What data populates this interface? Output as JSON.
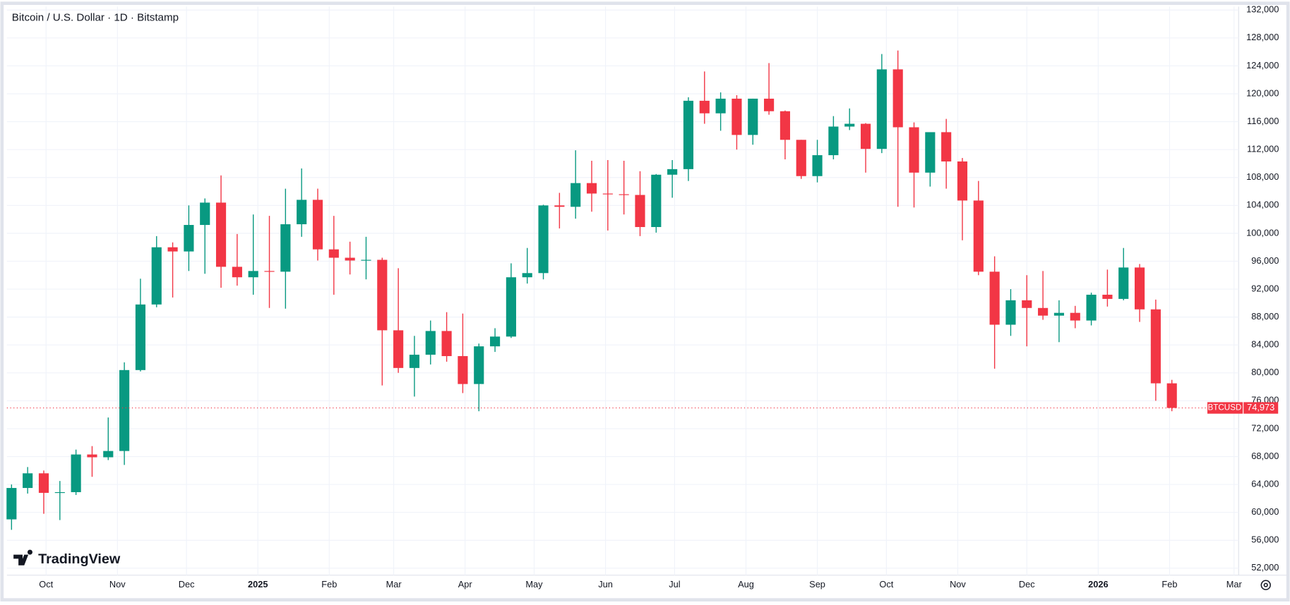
{
  "chart_data": {
    "type": "candlestick",
    "title": "Bitcoin / U.S. Dollar · 1D · Bitstamp",
    "brand": "TradingView",
    "up_color": "#089981",
    "down_color": "#f23645",
    "grid": true,
    "x": [
      0,
      7,
      14,
      21,
      28,
      35,
      42,
      49,
      56,
      63,
      70,
      77,
      84,
      91,
      98,
      105,
      112,
      119,
      126,
      133,
      140,
      147,
      154,
      161,
      168,
      175,
      182,
      189,
      196,
      203,
      210,
      217,
      224,
      231,
      238,
      245,
      252,
      259,
      266,
      273,
      280,
      287,
      294,
      301,
      308,
      315,
      322,
      329,
      336,
      343,
      350,
      357,
      364,
      371,
      378,
      385,
      392,
      399,
      406,
      413,
      420,
      427,
      434,
      441,
      448,
      455,
      462,
      469,
      476,
      483,
      490,
      497,
      504
    ],
    "open": [
      59000,
      63500,
      65600,
      62800,
      62900,
      68300,
      67900,
      68800,
      80400,
      89800,
      98000,
      97400,
      101200,
      104400,
      95200,
      93700,
      94600,
      94500,
      101300,
      104800,
      97700,
      96500,
      96100,
      96200,
      86100,
      80700,
      82600,
      86000,
      82400,
      78400,
      83800,
      85200,
      93700,
      94300,
      104000,
      103800,
      107200,
      105700,
      105600,
      105500,
      100900,
      108400,
      109200,
      119000,
      117200,
      119300,
      114100,
      119300,
      117500,
      113400,
      108200,
      111200,
      115300,
      115700,
      112100,
      123500,
      115200,
      108700,
      114500,
      110300,
      104700,
      94500,
      86900,
      90400,
      89300,
      88200,
      88600,
      87500,
      91200,
      90600,
      95100,
      89100,
      78500
    ],
    "high": [
      64000,
      66500,
      66000,
      64500,
      69000,
      69500,
      73600,
      81500,
      93500,
      99600,
      98700,
      104000,
      105000,
      108300,
      99900,
      102700,
      102500,
      106400,
      109300,
      106400,
      102500,
      98800,
      99500,
      96500,
      95000,
      85300,
      87500,
      88700,
      88500,
      84200,
      86400,
      95700,
      97900,
      104100,
      105800,
      111900,
      110400,
      110500,
      110400,
      108900,
      108500,
      110500,
      119500,
      123200,
      120200,
      119800,
      119300,
      124400,
      117600,
      113400,
      113400,
      116800,
      117900,
      115800,
      125700,
      126200,
      115900,
      114200,
      116400,
      110800,
      107500,
      96700,
      92000,
      94000,
      94600,
      90400,
      89600,
      91500,
      94800,
      97900,
      95600,
      90500,
      79000
    ],
    "low": [
      57500,
      62700,
      59800,
      58900,
      62500,
      65100,
      67500,
      66800,
      80200,
      89400,
      90800,
      94600,
      94200,
      92200,
      92500,
      91200,
      89300,
      89200,
      99500,
      96100,
      91200,
      94100,
      93400,
      78200,
      80000,
      76600,
      81200,
      81600,
      77100,
      74500,
      83000,
      85000,
      92800,
      93400,
      100700,
      102100,
      103100,
      100400,
      102700,
      99600,
      100100,
      105100,
      107500,
      115700,
      114700,
      112000,
      112700,
      117000,
      110600,
      107800,
      107300,
      110600,
      114800,
      108700,
      111500,
      103800,
      103700,
      106700,
      106400,
      99000,
      94000,
      80600,
      85300,
      83800,
      87600,
      84400,
      86400,
      86800,
      89500,
      90400,
      87300,
      76000,
      74500
    ],
    "close": [
      63500,
      65600,
      62800,
      62900,
      68300,
      67900,
      68800,
      80400,
      89800,
      98000,
      97400,
      101200,
      104400,
      95200,
      93700,
      94600,
      94500,
      101300,
      104800,
      97700,
      96500,
      96100,
      96200,
      86100,
      80700,
      82600,
      86000,
      82400,
      78400,
      83800,
      85200,
      93700,
      94300,
      104000,
      103800,
      107200,
      105700,
      105600,
      105500,
      100900,
      108400,
      109200,
      119000,
      117200,
      119300,
      114100,
      119300,
      117500,
      113400,
      108200,
      111200,
      115300,
      115700,
      112100,
      123500,
      115200,
      108700,
      114500,
      110300,
      104700,
      94500,
      86900,
      90400,
      89300,
      88200,
      88600,
      87500,
      91200,
      90600,
      95100,
      89100,
      78500,
      74973
    ],
    "last_price": {
      "symbol": "BTCUSD",
      "value": 74973,
      "label": "74,973"
    },
    "xlim": [
      -2,
      533
    ],
    "xticks": [
      {
        "value": 15,
        "label": "Oct"
      },
      {
        "value": 46,
        "label": "Nov"
      },
      {
        "value": 76,
        "label": "Dec"
      },
      {
        "value": 107,
        "label": "2025"
      },
      {
        "value": 138,
        "label": "Feb"
      },
      {
        "value": 166,
        "label": "Mar"
      },
      {
        "value": 197,
        "label": "Apr"
      },
      {
        "value": 227,
        "label": "May"
      },
      {
        "value": 258,
        "label": "Jun"
      },
      {
        "value": 288,
        "label": "Jul"
      },
      {
        "value": 319,
        "label": "Aug"
      },
      {
        "value": 350,
        "label": "Sep"
      },
      {
        "value": 380,
        "label": "Oct"
      },
      {
        "value": 411,
        "label": "Nov"
      },
      {
        "value": 441,
        "label": "Dec"
      },
      {
        "value": 472,
        "label": "2026"
      },
      {
        "value": 503,
        "label": "Feb"
      },
      {
        "value": 531,
        "label": "Mar"
      }
    ],
    "ylim": [
      51000,
      132500
    ],
    "yticks": [
      {
        "value": 52000,
        "label": "52,000"
      },
      {
        "value": 56000,
        "label": "56,000"
      },
      {
        "value": 60000,
        "label": "60,000"
      },
      {
        "value": 64000,
        "label": "64,000"
      },
      {
        "value": 68000,
        "label": "68,000"
      },
      {
        "value": 72000,
        "label": "72,000"
      },
      {
        "value": 76000,
        "label": "76,000"
      },
      {
        "value": 80000,
        "label": "80,000"
      },
      {
        "value": 84000,
        "label": "84,000"
      },
      {
        "value": 88000,
        "label": "88,000"
      },
      {
        "value": 92000,
        "label": "92,000"
      },
      {
        "value": 96000,
        "label": "96,000"
      },
      {
        "value": 100000,
        "label": "100,000"
      },
      {
        "value": 104000,
        "label": "104,000"
      },
      {
        "value": 108000,
        "label": "108,000"
      },
      {
        "value": 112000,
        "label": "112,000"
      },
      {
        "value": 116000,
        "label": "116,000"
      },
      {
        "value": 120000,
        "label": "120,000"
      },
      {
        "value": 124000,
        "label": "124,000"
      },
      {
        "value": 128000,
        "label": "128,000"
      },
      {
        "value": 132000,
        "label": "132,000"
      }
    ]
  }
}
